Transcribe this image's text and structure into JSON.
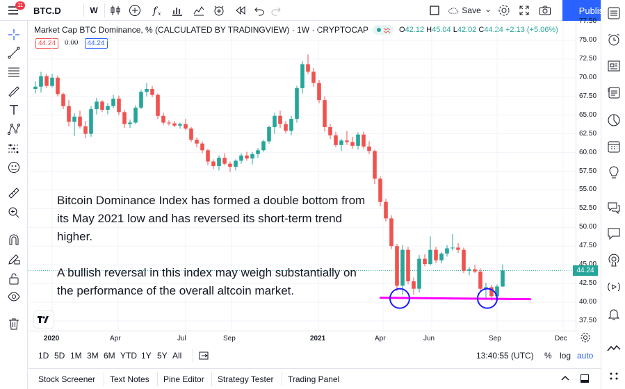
{
  "topbar": {
    "menu_badge": "11",
    "symbol": "BTC.D",
    "interval": "W",
    "save_label": "Save",
    "publish_label": "Publish"
  },
  "legend": {
    "title": "Market Cap BTC Dominance, % (CALCULATED BY TRADINGVIEW) · 1W · CRYPTOCAP",
    "o_label": "O",
    "o_val": "42.12",
    "h_label": "H",
    "h_val": "45.04",
    "l_label": "L",
    "l_val": "42.02",
    "c_label": "C",
    "c_val": "44.24",
    "change": "+2.13 (+5.06%)",
    "val_box_1": "44.24",
    "val_box_2": "0.00",
    "val_box_3": "44.24"
  },
  "annotation": {
    "paragraph_1": "Bitcoin Dominance Index has formed a double bottom from its May 2021 low and has reversed its short-term trend higher.",
    "paragraph_2": "A bullish reversal in this index may weigh substantially on the performance of the overall altcoin market."
  },
  "price_axis": {
    "labels": [
      "77.50",
      "75.00",
      "72.50",
      "70.00",
      "67.50",
      "65.00",
      "62.50",
      "60.00",
      "57.50",
      "55.00",
      "52.50",
      "50.00",
      "47.50",
      "45.00",
      "42.50",
      "40.00",
      "37.50"
    ],
    "last_price": "44.24"
  },
  "time_axis": {
    "labels": [
      "2020",
      "Apr",
      "Jul",
      "Sep",
      "2021",
      "Apr",
      "Jun",
      "Sep",
      "Dec"
    ]
  },
  "range_bar": {
    "ranges": [
      "1D",
      "5D",
      "1M",
      "3M",
      "6M",
      "YTD",
      "1Y",
      "5Y",
      "All"
    ],
    "clock": "13:40:55 (UTC)",
    "pct": "%",
    "log": "log",
    "auto": "auto"
  },
  "bottom_tabs": [
    "Stock Screener",
    "Text Notes",
    "Pine Editor",
    "Strategy Tester",
    "Trading Panel"
  ],
  "colors": {
    "up": "#26a69a",
    "down": "#ef5350",
    "support_line": "#ff00ff",
    "circle": "#1a1aff",
    "accent": "#2962ff"
  },
  "chart_data": {
    "type": "candlestick",
    "ylim": [
      36,
      79
    ],
    "support_level": 40.5,
    "candles": [
      [
        68.5,
        69.5,
        67.9,
        68.8
      ],
      [
        68.8,
        70.8,
        68.0,
        70.2
      ],
      [
        70.2,
        70.5,
        68.6,
        68.9
      ],
      [
        68.9,
        70.5,
        68.7,
        70.0
      ],
      [
        70.0,
        70.3,
        67.5,
        67.8
      ],
      [
        67.8,
        68.0,
        65.8,
        66.2
      ],
      [
        66.2,
        67.0,
        63.5,
        64.1
      ],
      [
        64.1,
        65.3,
        62.2,
        64.8
      ],
      [
        64.8,
        65.6,
        63.2,
        63.5
      ],
      [
        63.5,
        64.2,
        61.9,
        62.5
      ],
      [
        62.5,
        66.2,
        62.1,
        65.8
      ],
      [
        65.8,
        67.3,
        65.1,
        66.8
      ],
      [
        66.8,
        67.0,
        65.4,
        65.7
      ],
      [
        65.7,
        66.6,
        65.1,
        66.2
      ],
      [
        66.2,
        67.7,
        65.9,
        67.2
      ],
      [
        67.2,
        67.6,
        65.0,
        65.4
      ],
      [
        65.4,
        65.7,
        63.3,
        63.8
      ],
      [
        63.8,
        64.4,
        63.3,
        64.0
      ],
      [
        64.0,
        66.3,
        63.8,
        66.0
      ],
      [
        66.0,
        68.4,
        65.8,
        68.1
      ],
      [
        68.1,
        69.3,
        67.5,
        68.5
      ],
      [
        68.5,
        68.9,
        67.4,
        67.7
      ],
      [
        67.7,
        67.9,
        64.5,
        64.9
      ],
      [
        64.9,
        65.3,
        63.7,
        64.0
      ],
      [
        64.0,
        64.3,
        63.6,
        63.9
      ],
      [
        63.9,
        64.2,
        63.4,
        63.6
      ],
      [
        63.6,
        64.0,
        63.2,
        63.8
      ],
      [
        63.8,
        64.5,
        63.0,
        63.2
      ],
      [
        63.2,
        63.4,
        61.4,
        61.7
      ],
      [
        61.7,
        62.0,
        60.7,
        61.2
      ],
      [
        61.2,
        61.5,
        59.9,
        60.3
      ],
      [
        60.3,
        60.5,
        58.3,
        58.8
      ],
      [
        58.8,
        59.1,
        57.8,
        58.2
      ],
      [
        58.2,
        59.6,
        57.6,
        59.3
      ],
      [
        59.3,
        59.9,
        58.3,
        58.5
      ],
      [
        58.5,
        58.8,
        57.4,
        58.1
      ],
      [
        58.1,
        59.1,
        57.6,
        58.9
      ],
      [
        58.9,
        59.9,
        58.5,
        59.6
      ],
      [
        59.6,
        60.1,
        58.9,
        59.2
      ],
      [
        59.2,
        60.1,
        58.4,
        59.8
      ],
      [
        59.8,
        60.6,
        59.3,
        60.3
      ],
      [
        60.3,
        61.7,
        60.1,
        61.5
      ],
      [
        61.5,
        63.6,
        61.2,
        63.4
      ],
      [
        63.4,
        65.3,
        62.5,
        64.9
      ],
      [
        64.9,
        65.6,
        63.3,
        63.8
      ],
      [
        63.8,
        64.2,
        62.6,
        62.9
      ],
      [
        62.9,
        64.9,
        62.3,
        64.5
      ],
      [
        64.5,
        68.9,
        64.0,
        68.6
      ],
      [
        68.6,
        72.2,
        67.9,
        71.8
      ],
      [
        71.8,
        73.1,
        70.5,
        70.8
      ],
      [
        70.8,
        71.3,
        68.8,
        69.3
      ],
      [
        69.3,
        69.7,
        66.6,
        67.0
      ],
      [
        67.0,
        67.5,
        62.8,
        63.4
      ],
      [
        63.4,
        63.8,
        61.8,
        62.3
      ],
      [
        62.3,
        62.8,
        60.7,
        61.0
      ],
      [
        61.0,
        61.8,
        60.2,
        61.6
      ],
      [
        61.6,
        62.9,
        61.0,
        61.4
      ],
      [
        61.4,
        62.1,
        60.5,
        60.9
      ],
      [
        60.9,
        62.7,
        60.4,
        62.4
      ],
      [
        62.4,
        62.8,
        60.5,
        60.8
      ],
      [
        60.8,
        61.5,
        59.8,
        60.2
      ],
      [
        60.2,
        60.4,
        55.8,
        56.5
      ],
      [
        56.5,
        56.8,
        52.8,
        53.4
      ],
      [
        53.4,
        53.8,
        50.8,
        51.2
      ],
      [
        51.2,
        51.6,
        47.1,
        47.5
      ],
      [
        47.5,
        47.8,
        41.5,
        42.2
      ],
      [
        42.2,
        47.6,
        41.0,
        47.0
      ],
      [
        47.0,
        47.4,
        42.4,
        42.8
      ],
      [
        42.8,
        43.3,
        41.0,
        41.8
      ],
      [
        41.8,
        46.3,
        41.3,
        45.8
      ],
      [
        45.8,
        46.4,
        44.8,
        45.1
      ],
      [
        45.1,
        48.8,
        44.9,
        47.0
      ],
      [
        47.0,
        47.4,
        45.2,
        45.6
      ],
      [
        45.6,
        46.7,
        45.2,
        46.5
      ],
      [
        46.5,
        47.6,
        46.1,
        47.2
      ],
      [
        47.2,
        49.1,
        46.9,
        47.3
      ],
      [
        47.3,
        47.9,
        46.6,
        47.0
      ],
      [
        47.0,
        47.3,
        43.9,
        44.2
      ],
      [
        44.2,
        44.7,
        43.6,
        44.4
      ],
      [
        44.4,
        45.0,
        43.9,
        44.1
      ],
      [
        44.1,
        44.5,
        41.4,
        41.8
      ],
      [
        41.8,
        42.6,
        40.3,
        42.0
      ],
      [
        42.0,
        42.3,
        40.2,
        40.8
      ],
      [
        40.8,
        42.4,
        40.6,
        42.1
      ],
      [
        42.1,
        45.04,
        42.02,
        44.24
      ]
    ]
  }
}
